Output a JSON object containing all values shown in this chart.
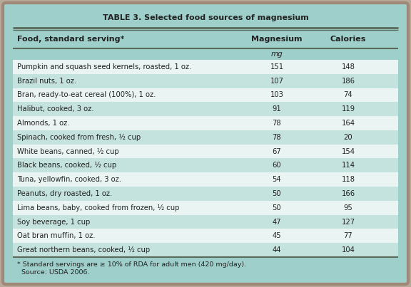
{
  "title": "TABLE 3. Selected food sources of magnesium",
  "col_headers": [
    "Food, standard serving*",
    "Magnesium",
    "Calories"
  ],
  "sub_header": [
    "",
    "mg",
    ""
  ],
  "rows": [
    [
      "Pumpkin and squash seed kernels, roasted, 1 oz.",
      "151",
      "148"
    ],
    [
      "Brazil nuts, 1 oz.",
      "107",
      "186"
    ],
    [
      "Bran, ready-to-eat cereal (100%), 1 oz.",
      "103",
      "74"
    ],
    [
      "Halibut, cooked, 3 oz.",
      "91",
      "119"
    ],
    [
      "Almonds, 1 oz.",
      "78",
      "164"
    ],
    [
      "Spinach, cooked from fresh, ½ cup",
      "78",
      "20"
    ],
    [
      "White beans, canned, ½ cup",
      "67",
      "154"
    ],
    [
      "Black beans, cooked, ½ cup",
      "60",
      "114"
    ],
    [
      "Tuna, yellowfin, cooked, 3 oz.",
      "54",
      "118"
    ],
    [
      "Peanuts, dry roasted, 1 oz.",
      "50",
      "166"
    ],
    [
      "Lima beans, baby, cooked from frozen, ½ cup",
      "50",
      "95"
    ],
    [
      "Soy beverage, 1 cup",
      "47",
      "127"
    ],
    [
      "Oat bran muffin, 1 oz.",
      "45",
      "77"
    ],
    [
      "Great northern beans, cooked, ½ cup",
      "44",
      "104"
    ]
  ],
  "footnote_line1": "* Standard servings are ≥ 10% of RDA for adult men (420 mg/day).",
  "footnote_line2": "  Source: USDA 2006.",
  "teal_bg": "#9ECFCA",
  "row_light": "#EAF5F3",
  "row_dark": "#C5E3DE",
  "border_outer": "#A08878",
  "outer_bg": "#B8A898",
  "line_color": "#5A6A5A",
  "text_dark": "#222222"
}
